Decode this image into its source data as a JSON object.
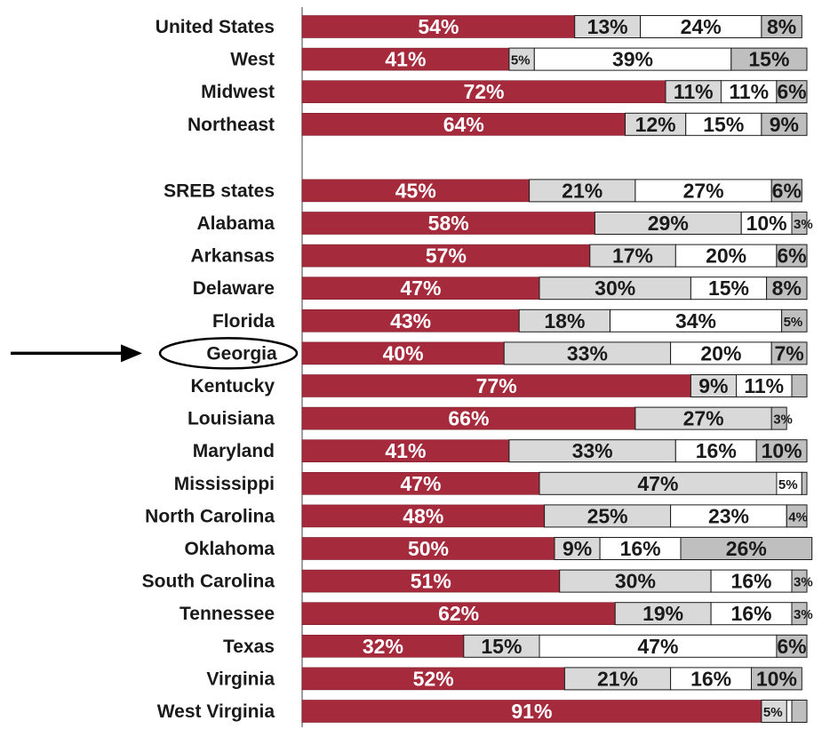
{
  "chart_data": {
    "type": "bar",
    "orientation": "horizontal",
    "stacked": true,
    "percent_stacked": true,
    "categories": [
      "United States",
      "West",
      "Midwest",
      "Northeast",
      "SREB states",
      "Alabama",
      "Arkansas",
      "Delaware",
      "Florida",
      "Georgia",
      "Kentucky",
      "Louisiana",
      "Maryland",
      "Mississippi",
      "North Carolina",
      "Oklahoma",
      "South Carolina",
      "Tennessee",
      "Texas",
      "Virginia",
      "West Virginia"
    ],
    "series": [
      {
        "color": "#a52a3c",
        "label_color": "#ffffff",
        "values": [
          54,
          41,
          72,
          64,
          45,
          58,
          57,
          47,
          43,
          40,
          77,
          66,
          41,
          47,
          48,
          50,
          51,
          62,
          32,
          52,
          91
        ]
      },
      {
        "color": "#d9d9d9",
        "label_color": "#1a1a1a",
        "values": [
          13,
          5,
          11,
          12,
          21,
          29,
          17,
          30,
          18,
          33,
          9,
          27,
          33,
          47,
          25,
          9,
          30,
          19,
          15,
          21,
          5
        ]
      },
      {
        "color": "#ffffff",
        "label_color": "#1a1a1a",
        "values": [
          24,
          39,
          11,
          15,
          27,
          10,
          20,
          15,
          34,
          20,
          11,
          0,
          16,
          5,
          23,
          16,
          16,
          16,
          47,
          16,
          1
        ]
      },
      {
        "color": "#bfbfbf",
        "label_color": "#1a1a1a",
        "values": [
          8,
          15,
          6,
          9,
          6,
          3,
          6,
          8,
          5,
          7,
          3,
          3,
          10,
          1,
          4,
          26,
          3,
          3,
          6,
          10,
          3
        ]
      }
    ],
    "data_labels": [
      [
        "54%",
        "13%",
        "24%",
        "8%"
      ],
      [
        "41%",
        "5%",
        "39%",
        "15%"
      ],
      [
        "72%",
        "11%",
        "11%",
        "6%"
      ],
      [
        "64%",
        "12%",
        "15%",
        "9%"
      ],
      [
        "45%",
        "21%",
        "27%",
        "6%"
      ],
      [
        "58%",
        "29%",
        "10%",
        "3%"
      ],
      [
        "57%",
        "17%",
        "20%",
        "6%"
      ],
      [
        "47%",
        "30%",
        "15%",
        "8%"
      ],
      [
        "43%",
        "18%",
        "34%",
        "5%"
      ],
      [
        "40%",
        "33%",
        "20%",
        "7%"
      ],
      [
        "77%",
        "9%",
        "11%",
        ""
      ],
      [
        "66%",
        "27%",
        "",
        "3%"
      ],
      [
        "41%",
        "33%",
        "16%",
        "10%"
      ],
      [
        "47%",
        "47%",
        "5%",
        ""
      ],
      [
        "48%",
        "25%",
        "23%",
        "4%"
      ],
      [
        "50%",
        "9%",
        "16%",
        "26%"
      ],
      [
        "51%",
        "30%",
        "16%",
        "3%"
      ],
      [
        "62%",
        "19%",
        "16%",
        "3%"
      ],
      [
        "32%",
        "15%",
        "47%",
        "6%"
      ],
      [
        "52%",
        "21%",
        "16%",
        "10%"
      ],
      [
        "91%",
        "5%",
        "",
        ""
      ]
    ],
    "group_gap_after": "Northeast",
    "highlighted_category": "Georgia",
    "highlight_marker": "arrow-and-ellipse",
    "xlim": [
      0,
      100
    ],
    "title": "",
    "xlabel": "",
    "ylabel": "",
    "legend": "none",
    "grid": false
  }
}
